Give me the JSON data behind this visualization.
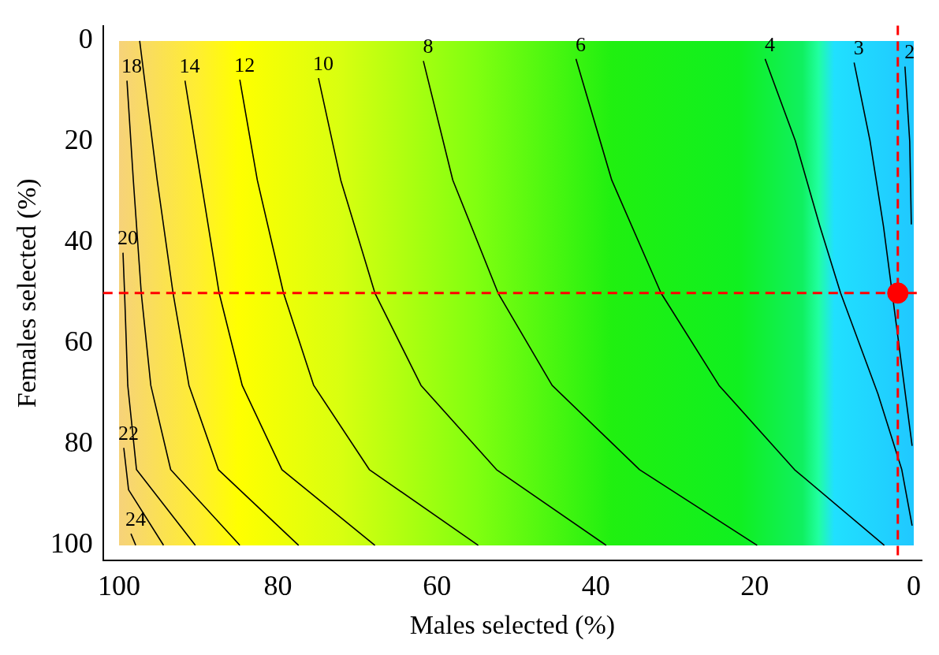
{
  "chart_data": {
    "type": "line",
    "xlabel": "Males selected (%)",
    "ylabel": "Females selected (%)",
    "xlim": [
      102,
      -1
    ],
    "ylim": [
      103,
      -3
    ],
    "xticks": [
      100,
      80,
      60,
      40,
      20,
      0
    ],
    "yticks": [
      0,
      20,
      40,
      60,
      80,
      100
    ],
    "legend": false,
    "marker": "none",
    "line_style": "solid",
    "series": [
      {
        "name": "24",
        "color": "#000000",
        "x": [
          98.5,
          97.9
        ],
        "values": [
          97.7,
          100
        ]
      },
      {
        "name": "22",
        "color": "#000000",
        "x": [
          99.4,
          98.8,
          94.4
        ],
        "values": [
          80.7,
          89,
          100
        ]
      },
      {
        "name": "20",
        "color": "#000000",
        "x": [
          99.5,
          99.3,
          98.9,
          97.8,
          90.4
        ],
        "values": [
          42,
          50,
          68.3,
          85,
          100
        ]
      },
      {
        "name": "18",
        "color": "#000000",
        "x": [
          99.0,
          98.2,
          97.2,
          96.0,
          93.5,
          84.8
        ],
        "values": [
          7.9,
          27.6,
          50,
          68.3,
          85,
          100
        ]
      },
      {
        "color": "#000000",
        "x": [
          97.4,
          95.2,
          93.2,
          91.2,
          87.5,
          77.4
        ],
        "values": [
          0,
          27.6,
          50,
          68.3,
          85,
          100
        ]
      },
      {
        "name": "14",
        "color": "#000000",
        "x": [
          91.7,
          89.7,
          87.4,
          84.5,
          79.5,
          67.8
        ],
        "values": [
          7.9,
          27.6,
          50,
          68.3,
          85,
          100
        ]
      },
      {
        "name": "12",
        "color": "#000000",
        "x": [
          84.8,
          82.6,
          79.3,
          75.5,
          68.5,
          54.8
        ],
        "values": [
          7.7,
          27.6,
          50,
          68.3,
          85,
          100
        ]
      },
      {
        "name": "10",
        "color": "#000000",
        "x": [
          74.9,
          72.1,
          67.8,
          62,
          52.5,
          38.7
        ],
        "values": [
          7.4,
          27.6,
          50,
          68.3,
          85,
          100
        ]
      },
      {
        "name": "8",
        "color": "#000000",
        "x": [
          61.7,
          58.0,
          52.3,
          45.5,
          34.5,
          19.7
        ],
        "values": [
          4,
          27.6,
          50,
          68.3,
          85,
          100
        ]
      },
      {
        "name": "6",
        "color": "#000000",
        "x": [
          42.5,
          38.0,
          31.8,
          24.5,
          15,
          3.7
        ],
        "values": [
          3.6,
          27.6,
          50,
          68.3,
          85,
          100
        ]
      },
      {
        "name": "4",
        "color": "#000000",
        "x": [
          18.7,
          14.9,
          11.8,
          9.2,
          4.5,
          1.5,
          0.2
        ],
        "values": [
          3.6,
          19.8,
          36.8,
          50,
          70,
          85,
          96.1
        ]
      },
      {
        "name": "3",
        "color": "#000000",
        "x": [
          7.5,
          5.5,
          3.8,
          2.2,
          0.2
        ],
        "values": [
          4.3,
          19.8,
          36.8,
          null,
          80.3
        ]
      },
      {
        "name": "2",
        "color": "#000000",
        "x": [
          1.1,
          0.5,
          0.3
        ],
        "values": [
          5.1,
          20,
          36.4
        ]
      },
      {
        "type": "scatter",
        "marker": "circle",
        "color": "#ff0000",
        "x": [
          2
        ],
        "values": [
          50
        ]
      }
    ],
    "ref_lines": [
      {
        "axis": "x",
        "value": 2,
        "color": "#ff0000",
        "line_style": "dashed"
      },
      {
        "axis": "y",
        "value": 50,
        "color": "#ff0000",
        "line_style": "dashed"
      }
    ]
  }
}
